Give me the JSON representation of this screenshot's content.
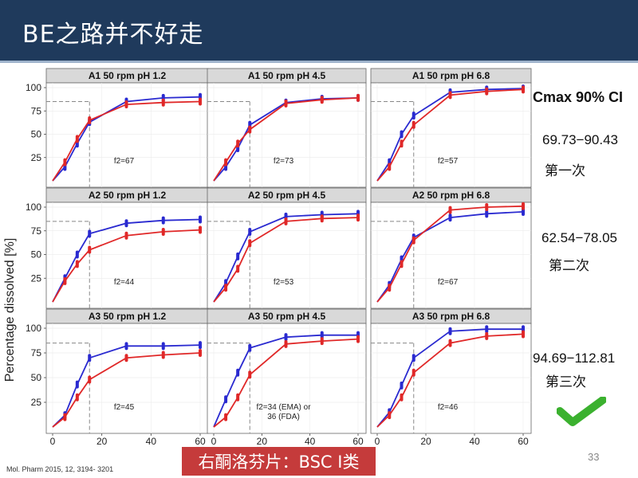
{
  "header": {
    "title": "BE之路并不好走"
  },
  "y_axis_label": "Percentage dissolved [%]",
  "side": {
    "heading": "Cmax 90% CI",
    "results": [
      {
        "ci": "69.73−90.43",
        "label": "第一次"
      },
      {
        "ci": "62.54−78.05",
        "label": "第二次"
      },
      {
        "ci": "94.69−112.81",
        "label": "第三次"
      }
    ],
    "check_icon": "check-mark-icon"
  },
  "reference": "Mol. Pharm 2015, 12, 3194- 3201",
  "banner": "右酮洛芬片：BSC I类",
  "page_number": "33",
  "colors": {
    "blue": "#2a2ad0",
    "red": "#e02828",
    "header": "#1f3a5c",
    "banner": "#c53b3b"
  },
  "chart_data": [
    {
      "type": "line",
      "title": "A1 50 rpm pH 1.2",
      "annotation": "f2=67",
      "x": [
        0,
        5,
        10,
        15,
        30,
        45,
        60
      ],
      "xlim": [
        0,
        60
      ],
      "ylim": [
        0,
        100
      ],
      "ref_time": 15,
      "ref_level": 85,
      "series": [
        {
          "color": "blue",
          "values": [
            0,
            15,
            40,
            63,
            85,
            89,
            90
          ]
        },
        {
          "color": "red",
          "values": [
            0,
            20,
            45,
            65,
            82,
            84,
            85
          ]
        }
      ]
    },
    {
      "type": "line",
      "title": "A1 50 rpm pH 4.5",
      "annotation": "f2=73",
      "x": [
        0,
        5,
        10,
        15,
        30,
        45,
        60
      ],
      "xlim": [
        0,
        60
      ],
      "ylim": [
        0,
        100
      ],
      "ref_time": 15,
      "ref_level": 85,
      "series": [
        {
          "color": "blue",
          "values": [
            0,
            15,
            35,
            60,
            84,
            88,
            89
          ]
        },
        {
          "color": "red",
          "values": [
            0,
            20,
            40,
            55,
            83,
            87,
            89
          ]
        }
      ]
    },
    {
      "type": "line",
      "title": "A1 50 rpm pH 6.8",
      "annotation": "f2=57",
      "x": [
        0,
        5,
        10,
        15,
        30,
        45,
        60
      ],
      "xlim": [
        0,
        60
      ],
      "ylim": [
        0,
        100
      ],
      "ref_time": 15,
      "ref_level": 85,
      "series": [
        {
          "color": "blue",
          "values": [
            0,
            20,
            50,
            70,
            95,
            98,
            99
          ]
        },
        {
          "color": "red",
          "values": [
            0,
            15,
            40,
            60,
            92,
            96,
            98
          ]
        }
      ]
    },
    {
      "type": "line",
      "title": "A2 50 rpm pH 1.2",
      "annotation": "f2=44",
      "x": [
        0,
        5,
        10,
        15,
        30,
        45,
        60
      ],
      "xlim": [
        0,
        60
      ],
      "ylim": [
        0,
        100
      ],
      "ref_time": 15,
      "ref_level": 85,
      "series": [
        {
          "color": "blue",
          "values": [
            0,
            25,
            50,
            72,
            83,
            86,
            87
          ]
        },
        {
          "color": "red",
          "values": [
            0,
            22,
            40,
            55,
            70,
            74,
            76
          ]
        }
      ]
    },
    {
      "type": "line",
      "title": "A2 50 rpm pH 4.5",
      "annotation": "f2=53",
      "x": [
        0,
        5,
        10,
        15,
        30,
        45,
        60
      ],
      "xlim": [
        0,
        60
      ],
      "ylim": [
        0,
        100
      ],
      "ref_time": 15,
      "ref_level": 85,
      "series": [
        {
          "color": "blue",
          "values": [
            0,
            20,
            48,
            74,
            90,
            92,
            93
          ]
        },
        {
          "color": "red",
          "values": [
            0,
            15,
            35,
            62,
            85,
            88,
            89
          ]
        }
      ]
    },
    {
      "type": "line",
      "title": "A2 50 rpm pH 6.8",
      "annotation": "f2=67",
      "x": [
        0,
        5,
        10,
        15,
        30,
        45,
        60
      ],
      "xlim": [
        0,
        60
      ],
      "ylim": [
        0,
        100
      ],
      "ref_time": 15,
      "ref_level": 85,
      "series": [
        {
          "color": "blue",
          "values": [
            0,
            18,
            45,
            68,
            89,
            93,
            95
          ]
        },
        {
          "color": "red",
          "values": [
            0,
            15,
            40,
            65,
            97,
            100,
            101
          ]
        }
      ]
    },
    {
      "type": "line",
      "title": "A3 50 rpm pH 1.2",
      "annotation": "f2=45",
      "x": [
        0,
        5,
        10,
        15,
        30,
        45,
        60
      ],
      "xlim": [
        0,
        60
      ],
      "ylim": [
        0,
        100
      ],
      "ref_time": 15,
      "ref_level": 85,
      "series": [
        {
          "color": "blue",
          "values": [
            0,
            12,
            43,
            70,
            82,
            82,
            83
          ]
        },
        {
          "color": "red",
          "values": [
            0,
            10,
            30,
            48,
            70,
            73,
            75
          ]
        }
      ]
    },
    {
      "type": "line",
      "title": "A3 50 rpm pH 4.5",
      "annotation": "f2=34 (EMA) or\n36 (FDA)",
      "x": [
        0,
        5,
        10,
        15,
        30,
        45,
        60
      ],
      "xlim": [
        0,
        60
      ],
      "ylim": [
        0,
        100
      ],
      "ref_time": 15,
      "ref_level": 85,
      "series": [
        {
          "color": "blue",
          "values": [
            0,
            28,
            55,
            80,
            91,
            93,
            93
          ]
        },
        {
          "color": "red",
          "values": [
            0,
            10,
            30,
            53,
            84,
            87,
            89
          ]
        }
      ]
    },
    {
      "type": "line",
      "title": "A3 50 rpm pH 6.8",
      "annotation": "f2=46",
      "x": [
        0,
        5,
        10,
        15,
        30,
        45,
        60
      ],
      "xlim": [
        0,
        60
      ],
      "ylim": [
        0,
        100
      ],
      "ref_time": 15,
      "ref_level": 85,
      "series": [
        {
          "color": "blue",
          "values": [
            0,
            15,
            42,
            70,
            97,
            99,
            99
          ]
        },
        {
          "color": "red",
          "values": [
            0,
            12,
            30,
            55,
            85,
            92,
            94
          ]
        }
      ]
    }
  ],
  "x_ticks": [
    0,
    20,
    40,
    60
  ],
  "y_ticks": [
    25,
    50,
    75,
    100
  ]
}
